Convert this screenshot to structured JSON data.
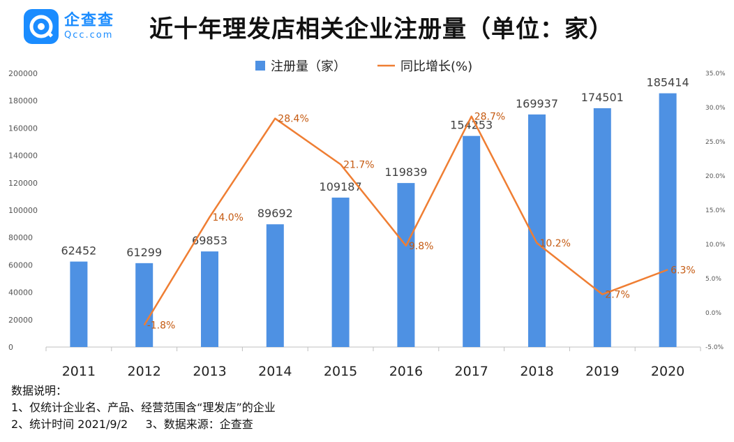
{
  "header": {
    "logo_cn": "企查查",
    "logo_en": "Qcc.com",
    "title": "近十年理发店相关企业注册量（单位：家）"
  },
  "chart_data": {
    "type": "bar+line",
    "title": "近十年理发店相关企业注册量（单位：家）",
    "categories": [
      "2011",
      "2012",
      "2013",
      "2014",
      "2015",
      "2016",
      "2017",
      "2018",
      "2019",
      "2020"
    ],
    "series": [
      {
        "name": "注册量（家）",
        "type": "bar",
        "axis": "left",
        "color": "#4e91e3",
        "values": [
          62452,
          61299,
          69853,
          89692,
          109187,
          119839,
          154253,
          169937,
          174501,
          185414
        ],
        "labels": [
          "62452",
          "61299",
          "69853",
          "89692",
          "109187",
          "119839",
          "154253",
          "169937",
          "174501",
          "185414"
        ]
      },
      {
        "name": "同比增长(%)",
        "type": "line",
        "axis": "right",
        "color": "#ef7e33",
        "values": [
          null,
          -1.8,
          14.0,
          28.4,
          21.7,
          9.8,
          28.7,
          10.2,
          2.7,
          6.3
        ],
        "labels": [
          "",
          "-1.8%",
          "14.0%",
          "28.4%",
          "21.7%",
          "9.8%",
          "28.7%",
          "10.2%",
          "2.7%",
          "6.3%"
        ]
      }
    ],
    "left_axis": {
      "ylim": [
        0,
        200000
      ],
      "ticks": [
        "0",
        "20000",
        "40000",
        "60000",
        "80000",
        "100000",
        "120000",
        "140000",
        "160000",
        "180000",
        "200000"
      ]
    },
    "right_axis": {
      "ylim": [
        -5,
        35
      ],
      "ticks": [
        "-5.0%",
        "0.0%",
        "5.0%",
        "10.0%",
        "15.0%",
        "20.0%",
        "25.0%",
        "30.0%",
        "35.0%"
      ]
    },
    "legend_position": "top-center",
    "grid": false
  },
  "notes": {
    "heading": "数据说明：",
    "line1": "1、仅统计企业名、产品、经营范围含“理发店”的企业",
    "line2": "2、统计时间 2021/9/2     3、数据来源：企查查"
  }
}
